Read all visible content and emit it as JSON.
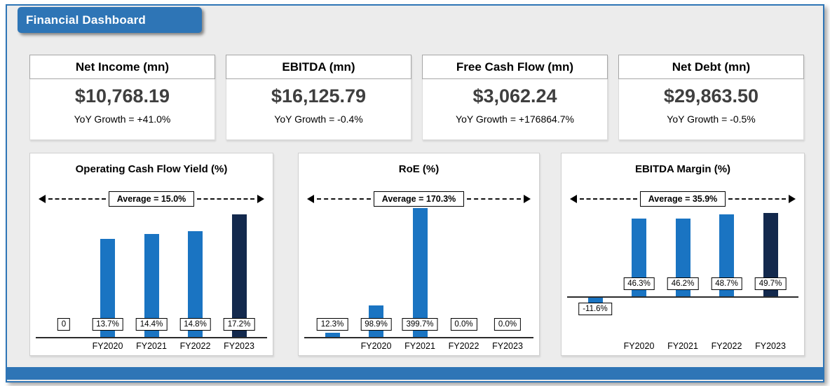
{
  "title_tab": "Financial Dashboard",
  "colors": {
    "accent_blue": "#2E75B6",
    "bar_blue": "#1A74C2",
    "bar_navy": "#13294D",
    "background_gray": "#ECECEC",
    "kpi_value_text": "#3F3F3F"
  },
  "kpis": [
    {
      "label": "Net Income (mn)",
      "value": "$10,768.19",
      "yoy": "YoY Growth = +41.0%"
    },
    {
      "label": "EBITDA (mn)",
      "value": "$16,125.79",
      "yoy": "YoY Growth = -0.4%"
    },
    {
      "label": "Free Cash Flow (mn)",
      "value": "$3,062.24",
      "yoy": "YoY Growth = +176864.7%"
    },
    {
      "label": "Net Debt (mn)",
      "value": "$29,863.50",
      "yoy": "YoY Growth = -0.5%"
    }
  ],
  "chart_data": [
    {
      "type": "bar",
      "title": "Operating Cash Flow Yield (%)",
      "average": 15.0,
      "average_label": "Average = 15.0%",
      "categories": [
        "",
        "FY2020",
        "FY2021",
        "FY2022",
        "FY2023"
      ],
      "values": [
        0,
        13.7,
        14.4,
        14.8,
        17.2
      ],
      "data_labels": [
        "0",
        "13.7%",
        "14.4%",
        "14.8%",
        "17.2%"
      ],
      "bar_colors": [
        "#1A74C2",
        "#1A74C2",
        "#1A74C2",
        "#1A74C2",
        "#13294D"
      ],
      "ylim": [
        0,
        18
      ],
      "grid": false,
      "legend": "none"
    },
    {
      "type": "bar",
      "title": "RoE (%)",
      "average": 170.3,
      "average_label": "Average = 170.3%",
      "categories": [
        "",
        "FY2020",
        "FY2021",
        "FY2022",
        "FY2023"
      ],
      "values": [
        12.3,
        98.9,
        399.7,
        0.0,
        0.0
      ],
      "data_labels": [
        "12.3%",
        "98.9%",
        "399.7%",
        "0.0%",
        "0.0%"
      ],
      "bar_colors": [
        "#1A74C2",
        "#1A74C2",
        "#1A74C2",
        "#1A74C2",
        "#1A74C2"
      ],
      "ylim": [
        0,
        400
      ],
      "grid": false,
      "legend": "none"
    },
    {
      "type": "bar",
      "title": "EBITDA Margin (%)",
      "average": 35.9,
      "average_label": "Average = 35.9%",
      "categories": [
        "",
        "FY2020",
        "FY2021",
        "FY2022",
        "FY2023"
      ],
      "values": [
        -11.6,
        46.3,
        46.2,
        48.7,
        49.7
      ],
      "data_labels": [
        "-11.6%",
        "46.3%",
        "46.2%",
        "48.7%",
        "49.7%"
      ],
      "bar_colors": [
        "#1A74C2",
        "#1A74C2",
        "#1A74C2",
        "#1A74C2",
        "#13294D"
      ],
      "ylim": [
        -12,
        52
      ],
      "grid": false,
      "legend": "none"
    }
  ]
}
